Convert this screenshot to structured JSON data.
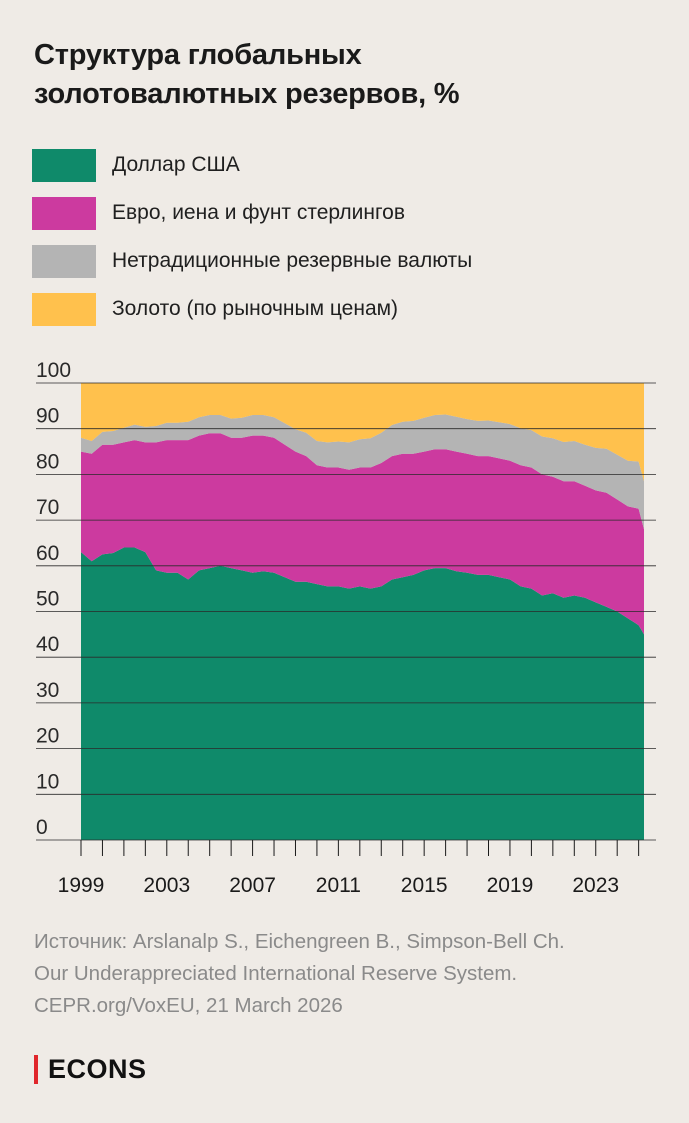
{
  "title": {
    "line1": "Структура глобальных",
    "line2": "золотовалютных резервов, %"
  },
  "legend": [
    {
      "label": "Доллар США",
      "color": "#0f8a6a"
    },
    {
      "label": "Евро, иена и фунт стерлингов",
      "color": "#cc3a9f"
    },
    {
      "label": "Нетрадиционные резервные валюты",
      "color": "#b4b4b4"
    },
    {
      "label": "Золото (по рыночным ценам)",
      "color": "#ffc14d"
    }
  ],
  "source": {
    "line1": "Источник: Arslanalp S., Eichengreen B., Simpson-Bell Ch.",
    "line2": "Our Underappreciated International Reserve System.",
    "line3": "CEPR.org/VoxEU, 21 March 2026"
  },
  "brand": {
    "name": "ECONS",
    "accent": "#e0262b"
  },
  "chart_data": {
    "type": "area",
    "stacked": true,
    "title": "Структура глобальных золотовалютных резервов, %",
    "xlabel": "",
    "ylabel": "",
    "xlim": [
      1999,
      2025.25
    ],
    "ylim": [
      0,
      100
    ],
    "yticks": [
      0,
      10,
      20,
      30,
      40,
      50,
      60,
      70,
      80,
      90,
      100
    ],
    "xticks": [
      1999,
      2003,
      2007,
      2011,
      2015,
      2019,
      2023
    ],
    "x": [
      1999,
      1999.5,
      2000,
      2000.5,
      2001,
      2001.5,
      2002,
      2002.5,
      2003,
      2003.5,
      2004,
      2004.5,
      2005,
      2005.5,
      2006,
      2006.5,
      2007,
      2007.5,
      2008,
      2008.5,
      2009,
      2009.5,
      2010,
      2010.5,
      2011,
      2011.5,
      2012,
      2012.5,
      2013,
      2013.5,
      2014,
      2014.5,
      2015,
      2015.5,
      2016,
      2016.5,
      2017,
      2017.5,
      2018,
      2018.5,
      2019,
      2019.5,
      2020,
      2020.5,
      2021,
      2021.5,
      2022,
      2022.5,
      2023,
      2023.5,
      2024,
      2024.5,
      2025,
      2025.25
    ],
    "series": [
      {
        "name": "Доллар США",
        "color": "#0f8a6a",
        "values": [
          63,
          61,
          62.5,
          62.8,
          64,
          64,
          63,
          59,
          58.5,
          58.5,
          57,
          59,
          59.5,
          60,
          59.5,
          59,
          58.5,
          58.8,
          58.5,
          57.5,
          56.5,
          56.5,
          56,
          55.5,
          55.5,
          55,
          55.5,
          55,
          55.5,
          57,
          57.5,
          58,
          59,
          59.5,
          59.5,
          58.8,
          58.5,
          58,
          58,
          57.5,
          57,
          55.5,
          55,
          53.5,
          54,
          53,
          53.5,
          53,
          52,
          51,
          50,
          48.5,
          47,
          45
        ]
      },
      {
        "name": "Евро, иена и фунт стерлингов",
        "color": "#cc3a9f",
        "values": [
          22,
          23.5,
          24,
          23.7,
          23,
          23.5,
          24,
          28,
          29,
          29,
          30.5,
          29.5,
          29.5,
          29,
          28.5,
          29,
          30,
          29.7,
          29.5,
          29,
          28.5,
          27.5,
          26,
          26,
          26,
          26,
          26,
          26.5,
          27,
          27,
          27,
          26.5,
          26,
          26,
          26,
          26.2,
          26,
          26,
          26,
          26,
          26,
          26.5,
          26.5,
          26.5,
          25.5,
          25.5,
          25,
          24.5,
          24.5,
          25,
          24.5,
          24.5,
          25.5,
          23
        ]
      },
      {
        "name": "Нетрадиционные резервные валюты",
        "color": "#b4b4b4",
        "values": [
          3,
          2.8,
          2.8,
          3,
          3.2,
          3.4,
          3.4,
          3.6,
          3.8,
          3.8,
          4,
          4,
          4,
          4,
          4.2,
          4.4,
          4.5,
          4.5,
          4.5,
          4.7,
          4.9,
          5.1,
          5.3,
          5.5,
          5.7,
          6,
          6.2,
          6.4,
          6.6,
          6.8,
          7,
          7.2,
          7.4,
          7.5,
          7.6,
          7.6,
          7.6,
          7.7,
          7.8,
          7.9,
          8,
          8.1,
          8.2,
          8.3,
          8.4,
          8.6,
          8.8,
          9,
          9.3,
          9.6,
          9.8,
          10,
          10.3,
          10.5
        ]
      },
      {
        "name": "Золото (по рыночным ценам)",
        "color": "#ffc14d",
        "values": [
          12,
          12.7,
          10.7,
          10.5,
          9.8,
          9.1,
          9.6,
          9.4,
          8.7,
          8.7,
          8.5,
          7.5,
          7,
          7,
          7.8,
          7.6,
          7,
          7,
          7.5,
          8.8,
          10.1,
          10.9,
          12.7,
          13,
          12.8,
          13,
          12.3,
          12.1,
          10.9,
          9.2,
          8.5,
          8.3,
          7.6,
          7,
          6.9,
          7.4,
          7.9,
          8.3,
          8.2,
          8.6,
          9,
          9.9,
          10.3,
          11.7,
          12.1,
          12.9,
          12.7,
          13.5,
          14.2,
          14.4,
          15.7,
          17,
          17.2,
          21.5
        ]
      }
    ]
  }
}
